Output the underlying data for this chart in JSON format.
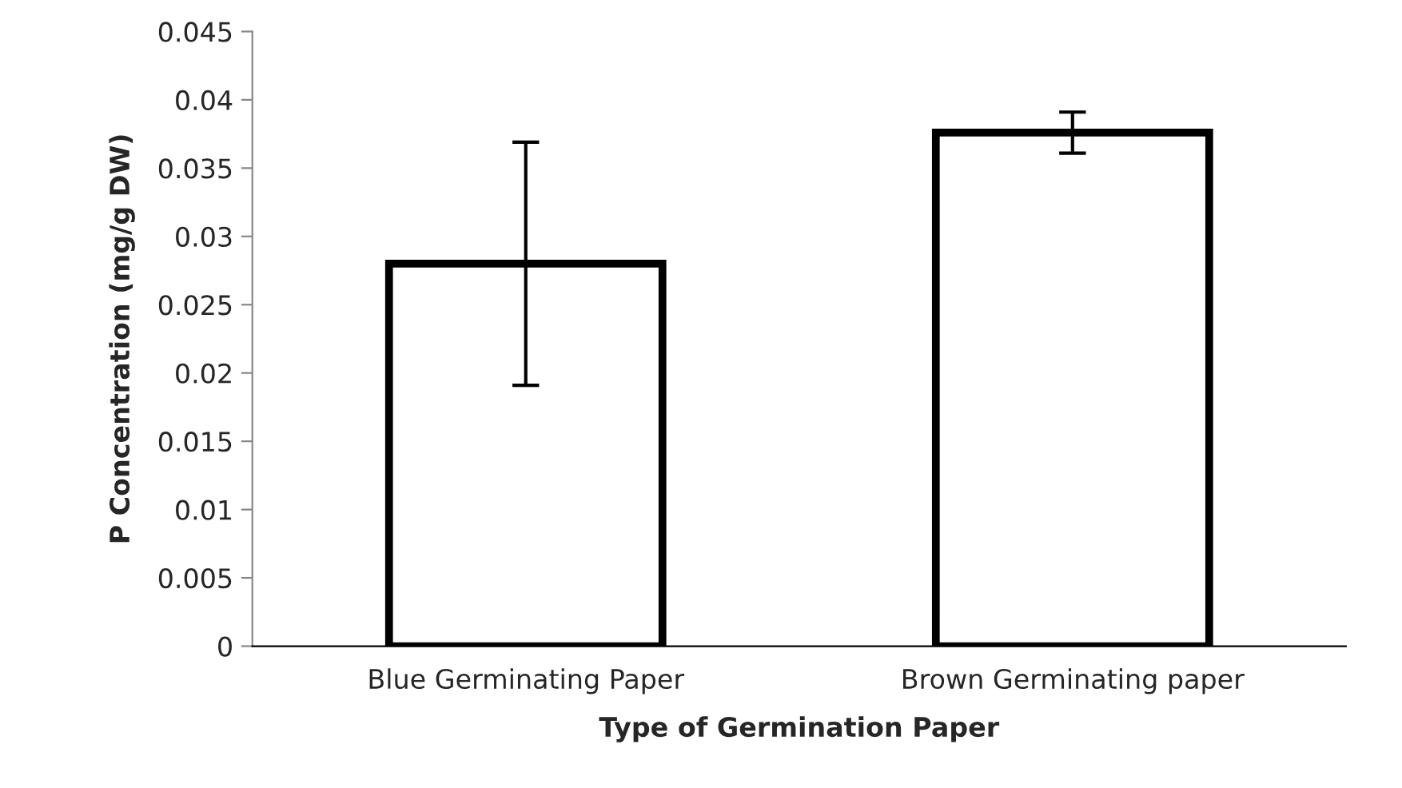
{
  "chart_data": {
    "type": "bar",
    "xlabel": "Type of Germination Paper",
    "ylabel": "P Concentration (mg/g DW)",
    "categories": [
      "Blue Germinating Paper",
      "Brown Germinating paper"
    ],
    "values": [
      0.028,
      0.0376
    ],
    "errors": [
      0.0089,
      0.0015
    ],
    "color": "#ffffff",
    "ylim": [
      0,
      0.045
    ],
    "yticks": [
      {
        "value": 0,
        "label": "0"
      },
      0.005,
      0.01,
      0.015,
      0.02,
      0.025,
      0.03,
      0.035,
      0.04,
      0.045
    ],
    "grid": false
  }
}
